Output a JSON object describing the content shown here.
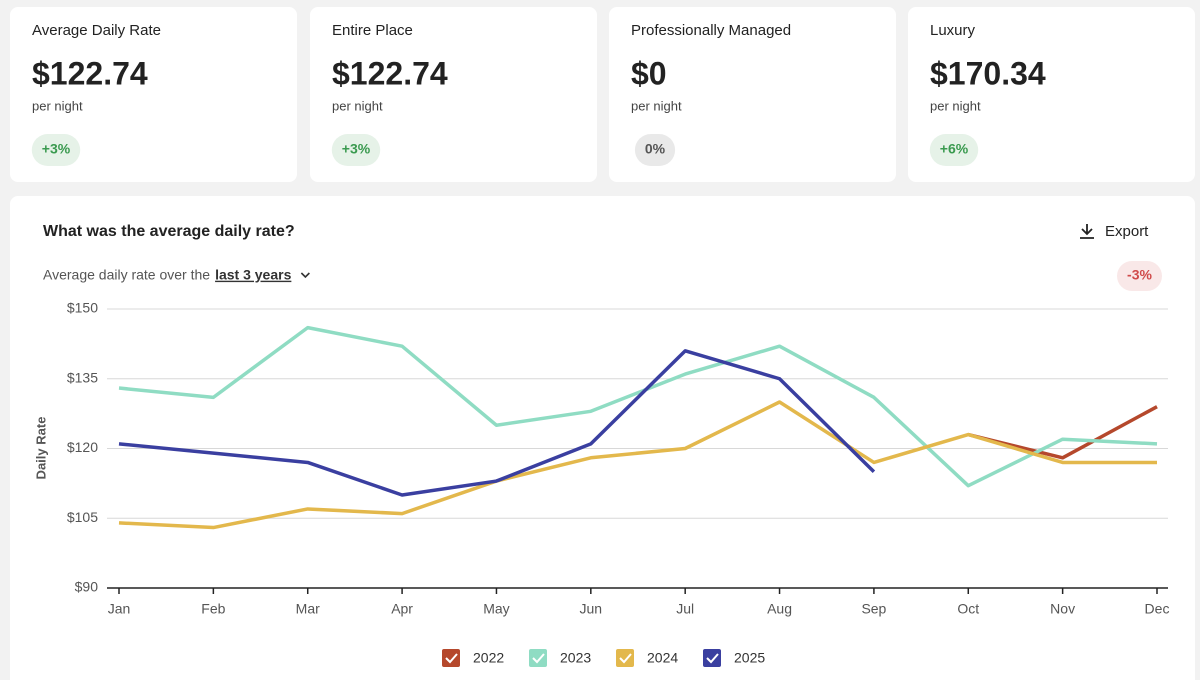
{
  "cards": [
    {
      "title": "Average Daily Rate",
      "value": "$122.74",
      "unit": "per night",
      "badge": "+3%",
      "badge_color": "#3a9a4f"
    },
    {
      "title": "Entire Place",
      "value": "$122.74",
      "unit": "per night",
      "badge": "+3%",
      "badge_color": "#3a9a4f"
    },
    {
      "title": "Professionally Managed",
      "value": "$0",
      "unit": "per night",
      "badge": "0%",
      "badge_color": "#555555"
    },
    {
      "title": "Luxury",
      "value": "$170.34",
      "unit": "per night",
      "badge": "+6%",
      "badge_color": "#3a9a4f"
    }
  ],
  "panel": {
    "question": "What was the average daily rate?",
    "export": "Export",
    "subtitle": "Average daily rate over the",
    "period": "last 3 years",
    "change": "-3%",
    "change_color": "#d04a4a"
  },
  "chart_data": {
    "type": "line",
    "y_label": "Daily Rate",
    "categories": [
      "Jan",
      "Feb",
      "Mar",
      "Apr",
      "May",
      "Jun",
      "Jul",
      "Aug",
      "Sep",
      "Oct",
      "Nov",
      "Dec"
    ],
    "ylim": [
      90,
      150
    ],
    "yticks": [
      {
        "value": 90,
        "label": "$90"
      },
      {
        "value": 105,
        "label": "$105"
      },
      {
        "value": 120,
        "label": "$120"
      },
      {
        "value": 135,
        "label": "$135"
      },
      {
        "value": 150,
        "label": "$150"
      }
    ],
    "grid": true,
    "series": [
      {
        "name": "2022",
        "color": "#b5482c",
        "values": [
          null,
          null,
          null,
          null,
          null,
          null,
          null,
          null,
          null,
          123,
          118,
          129
        ]
      },
      {
        "name": "2023",
        "color": "#8fdcc3",
        "values": [
          133,
          131,
          146,
          142,
          125,
          128,
          136,
          142,
          131,
          112,
          122,
          121
        ]
      },
      {
        "name": "2024",
        "color": "#e3b84c",
        "values": [
          104,
          103,
          107,
          106,
          113,
          118,
          120,
          130,
          117,
          123,
          117,
          117
        ]
      },
      {
        "name": "2025",
        "color": "#3a3fa0",
        "values": [
          121,
          119,
          117,
          110,
          113,
          121,
          141,
          135,
          115,
          null,
          null,
          null
        ]
      }
    ]
  }
}
